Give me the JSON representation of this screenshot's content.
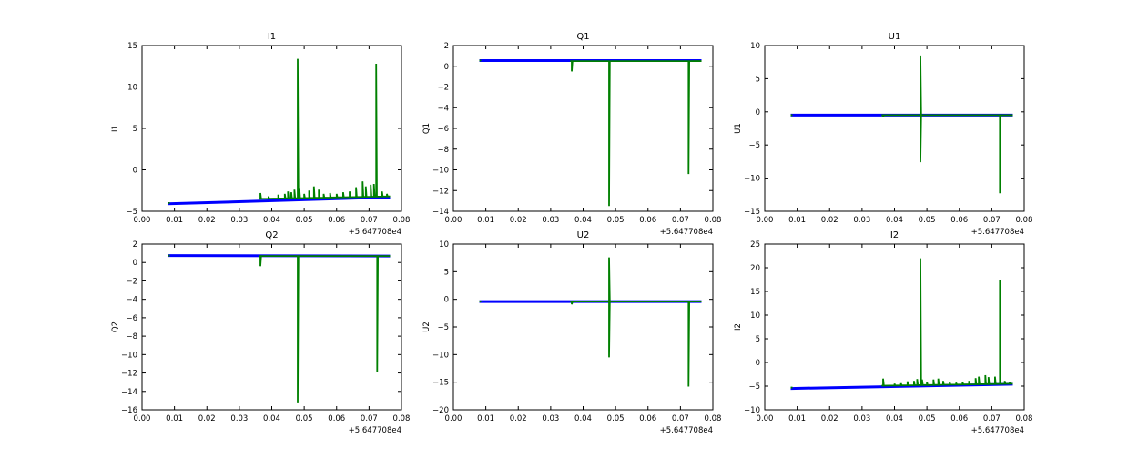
{
  "chart_data": [
    {
      "type": "line",
      "title": "I1",
      "ylabel": "I1",
      "offset_label": "+5.647708e4",
      "xlim": [
        0,
        0.08
      ],
      "xticks": [
        0,
        0.01,
        0.02,
        0.03,
        0.04,
        0.05,
        0.06,
        0.07,
        0.08
      ],
      "ylim": [
        -5,
        15
      ],
      "yticks": [
        -5,
        0,
        5,
        10,
        15
      ],
      "series": [
        {
          "name": "blue",
          "color": "#0000ff",
          "x_range": [
            0.008,
            0.0765
          ],
          "y_start": -4.1,
          "y_end": -3.3
        },
        {
          "name": "green",
          "color": "#008000",
          "x_range": [
            0.036,
            0.0765
          ],
          "y_start": -3.5,
          "y_end": -3.2,
          "start_point": [
            0.008,
            -4.0
          ],
          "spikes": [
            [
              0.0365,
              -2.8
            ],
            [
              0.039,
              -3.2
            ],
            [
              0.042,
              -3.0
            ],
            [
              0.044,
              -2.9
            ],
            [
              0.045,
              -2.6
            ],
            [
              0.046,
              -2.7
            ],
            [
              0.047,
              -2.4
            ],
            [
              0.048,
              13.4
            ],
            [
              0.0485,
              -2.2
            ],
            [
              0.05,
              -2.9
            ],
            [
              0.0515,
              -2.5
            ],
            [
              0.053,
              -2.0
            ],
            [
              0.0545,
              -2.4
            ],
            [
              0.056,
              -2.9
            ],
            [
              0.058,
              -2.8
            ],
            [
              0.06,
              -2.9
            ],
            [
              0.062,
              -2.7
            ],
            [
              0.064,
              -2.6
            ],
            [
              0.066,
              -2.1
            ],
            [
              0.068,
              -1.4
            ],
            [
              0.069,
              -2.0
            ],
            [
              0.0705,
              -1.8
            ],
            [
              0.0715,
              -1.7
            ],
            [
              0.0722,
              12.8
            ],
            [
              0.074,
              -2.6
            ],
            [
              0.0755,
              -2.9
            ]
          ]
        }
      ]
    },
    {
      "type": "line",
      "title": "Q1",
      "ylabel": "Q1",
      "offset_label": "+5.647708e4",
      "xlim": [
        0,
        0.08
      ],
      "xticks": [
        0,
        0.01,
        0.02,
        0.03,
        0.04,
        0.05,
        0.06,
        0.07,
        0.08
      ],
      "ylim": [
        -14,
        2
      ],
      "yticks": [
        -14,
        -12,
        -10,
        -8,
        -6,
        -4,
        -2,
        0,
        2
      ],
      "series": [
        {
          "name": "blue",
          "color": "#0000ff",
          "x_range": [
            0.008,
            0.0765
          ],
          "y_start": 0.55,
          "y_end": 0.55
        },
        {
          "name": "green",
          "color": "#008000",
          "x_range": [
            0.036,
            0.0765
          ],
          "y_start": 0.5,
          "y_end": 0.5,
          "start_point": [
            0.008,
            0.55
          ],
          "spikes": [
            [
              0.0365,
              -0.5
            ],
            [
              0.048,
              -13.5
            ],
            [
              0.0725,
              -10.4
            ]
          ]
        }
      ]
    },
    {
      "type": "line",
      "title": "U1",
      "ylabel": "U1",
      "offset_label": "+5.647708e4",
      "xlim": [
        0,
        0.08
      ],
      "xticks": [
        0,
        0.01,
        0.02,
        0.03,
        0.04,
        0.05,
        0.06,
        0.07,
        0.08
      ],
      "ylim": [
        -15,
        10
      ],
      "yticks": [
        -15,
        -10,
        -5,
        0,
        5,
        10
      ],
      "series": [
        {
          "name": "blue",
          "color": "#0000ff",
          "x_range": [
            0.008,
            0.0765
          ],
          "y_start": -0.5,
          "y_end": -0.5
        },
        {
          "name": "green",
          "color": "#008000",
          "x_range": [
            0.036,
            0.0765
          ],
          "y_start": -0.5,
          "y_end": -0.5,
          "start_point": [
            0.008,
            -0.5
          ],
          "spikes": [
            [
              0.0365,
              -0.8
            ],
            [
              0.048,
              8.5
            ],
            [
              0.048,
              -7.6
            ],
            [
              0.0725,
              -12.3
            ]
          ]
        }
      ]
    },
    {
      "type": "line",
      "title": "Q2",
      "ylabel": "Q2",
      "offset_label": "+5.647708e4",
      "xlim": [
        0,
        0.08
      ],
      "xticks": [
        0,
        0.01,
        0.02,
        0.03,
        0.04,
        0.05,
        0.06,
        0.07,
        0.08
      ],
      "ylim": [
        -16,
        2
      ],
      "yticks": [
        -16,
        -14,
        -12,
        -10,
        -8,
        -6,
        -4,
        -2,
        0,
        2
      ],
      "series": [
        {
          "name": "blue",
          "color": "#0000ff",
          "x_range": [
            0.008,
            0.0765
          ],
          "y_start": 0.75,
          "y_end": 0.7
        },
        {
          "name": "green",
          "color": "#008000",
          "x_range": [
            0.036,
            0.0765
          ],
          "y_start": 0.7,
          "y_end": 0.7,
          "start_point": [
            0.008,
            0.75
          ],
          "spikes": [
            [
              0.0365,
              -0.4
            ],
            [
              0.048,
              -15.2
            ],
            [
              0.0725,
              -11.9
            ]
          ]
        }
      ]
    },
    {
      "type": "line",
      "title": "U2",
      "ylabel": "U2",
      "offset_label": "+5.647708e4",
      "xlim": [
        0,
        0.08
      ],
      "xticks": [
        0,
        0.01,
        0.02,
        0.03,
        0.04,
        0.05,
        0.06,
        0.07,
        0.08
      ],
      "ylim": [
        -20,
        10
      ],
      "yticks": [
        -20,
        -15,
        -10,
        -5,
        0,
        5,
        10
      ],
      "series": [
        {
          "name": "blue",
          "color": "#0000ff",
          "x_range": [
            0.008,
            0.0765
          ],
          "y_start": -0.4,
          "y_end": -0.4
        },
        {
          "name": "green",
          "color": "#008000",
          "x_range": [
            0.036,
            0.0765
          ],
          "y_start": -0.4,
          "y_end": -0.4,
          "start_point": [
            0.008,
            -0.4
          ],
          "spikes": [
            [
              0.0365,
              -0.9
            ],
            [
              0.048,
              7.6
            ],
            [
              0.048,
              -10.5
            ],
            [
              0.0725,
              -15.8
            ]
          ]
        }
      ]
    },
    {
      "type": "line",
      "title": "I2",
      "ylabel": "I2",
      "offset_label": "+5.647708e4",
      "xlim": [
        0,
        0.08
      ],
      "xticks": [
        0,
        0.01,
        0.02,
        0.03,
        0.04,
        0.05,
        0.06,
        0.07,
        0.08
      ],
      "ylim": [
        -10,
        25
      ],
      "yticks": [
        -10,
        -5,
        0,
        5,
        10,
        15,
        20,
        25
      ],
      "series": [
        {
          "name": "blue",
          "color": "#0000ff",
          "x_range": [
            0.008,
            0.0765
          ],
          "y_start": -5.5,
          "y_end": -4.6
        },
        {
          "name": "green",
          "color": "#008000",
          "x_range": [
            0.036,
            0.0765
          ],
          "y_start": -4.9,
          "y_end": -4.5,
          "start_point": [
            0.008,
            -5.3
          ],
          "spikes": [
            [
              0.0365,
              -3.4
            ],
            [
              0.04,
              -4.5
            ],
            [
              0.042,
              -4.4
            ],
            [
              0.044,
              -4.0
            ],
            [
              0.046,
              -3.9
            ],
            [
              0.047,
              -3.5
            ],
            [
              0.048,
              22.0
            ],
            [
              0.0485,
              -3.6
            ],
            [
              0.05,
              -4.1
            ],
            [
              0.052,
              -3.6
            ],
            [
              0.0535,
              -3.4
            ],
            [
              0.055,
              -3.9
            ],
            [
              0.057,
              -4.1
            ],
            [
              0.059,
              -4.3
            ],
            [
              0.061,
              -4.2
            ],
            [
              0.063,
              -3.9
            ],
            [
              0.065,
              -3.3
            ],
            [
              0.066,
              -3.0
            ],
            [
              0.068,
              -2.7
            ],
            [
              0.069,
              -3.1
            ],
            [
              0.071,
              -3.0
            ],
            [
              0.0725,
              17.5
            ],
            [
              0.074,
              -3.9
            ],
            [
              0.0755,
              -4.1
            ]
          ]
        }
      ]
    }
  ]
}
